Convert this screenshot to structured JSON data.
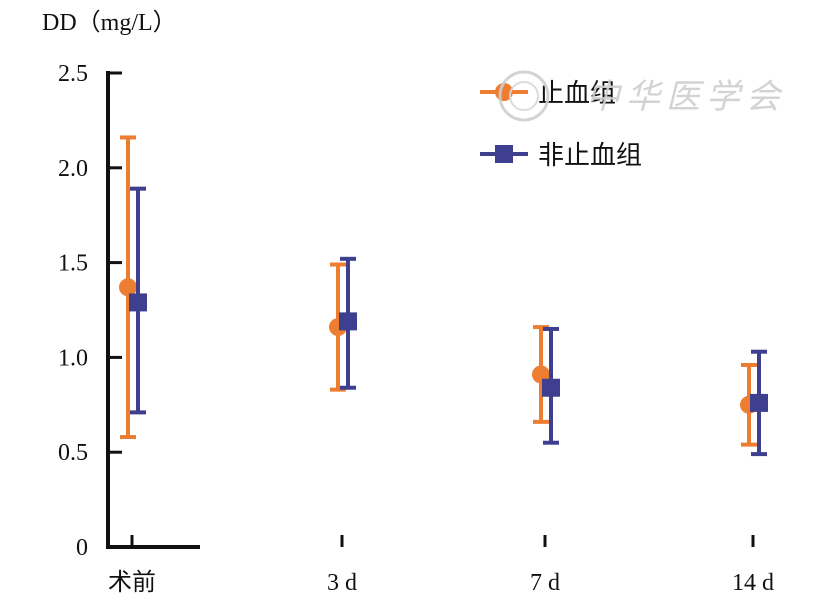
{
  "chart_data": {
    "type": "scatter",
    "ylabel": "DD（mg/L）",
    "categories": [
      "术前",
      "3 d",
      "7 d",
      "14 d"
    ],
    "y_ticks": [
      "0",
      "0.5",
      "1.0",
      "1.5",
      "2.0",
      "2.5"
    ],
    "ylim": [
      0,
      2.5
    ],
    "grid": false,
    "legend_position": "top-right",
    "series": [
      {
        "name": "止血组",
        "color": "#ed7d31",
        "marker": "circle",
        "values": [
          1.37,
          1.16,
          0.91,
          0.75
        ],
        "error_low": [
          0.58,
          0.83,
          0.66,
          0.54
        ],
        "error_high": [
          2.16,
          1.49,
          1.16,
          0.96
        ]
      },
      {
        "name": "非止血组",
        "color": "#3f3f8f",
        "marker": "square",
        "values": [
          1.29,
          1.19,
          0.84,
          0.76
        ],
        "error_low": [
          0.71,
          0.84,
          0.55,
          0.49
        ],
        "error_high": [
          1.89,
          1.52,
          1.15,
          1.03
        ]
      }
    ]
  },
  "watermark": {
    "label": "中华医学会"
  }
}
